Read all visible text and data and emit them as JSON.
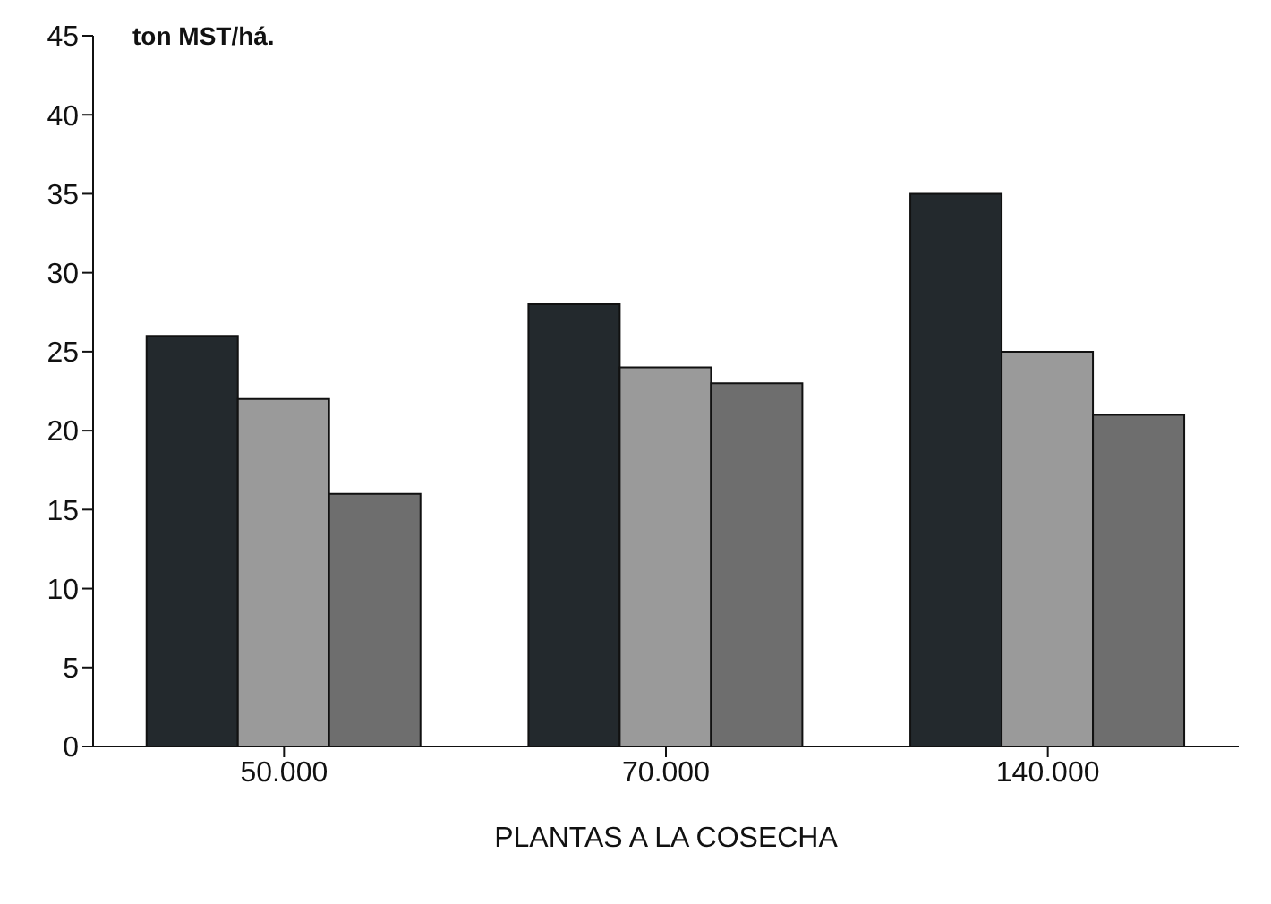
{
  "chart_data": {
    "type": "bar",
    "xlabel": "PLANTAS A LA COSECHA",
    "ylabel": "ton MST/há.",
    "categories": [
      "50.000",
      "70.000",
      "140.000"
    ],
    "series": [
      {
        "color": "#23292d",
        "values": [
          26,
          28,
          35
        ]
      },
      {
        "color": "#9a9a9a",
        "values": [
          22,
          24,
          25
        ]
      },
      {
        "color": "#6e6e6e",
        "values": [
          16,
          23,
          21
        ]
      }
    ],
    "ylim": [
      0,
      45
    ],
    "yticks": [
      0,
      5,
      10,
      15,
      20,
      25,
      30,
      35,
      40,
      45
    ],
    "grid": false,
    "legend": false
  }
}
